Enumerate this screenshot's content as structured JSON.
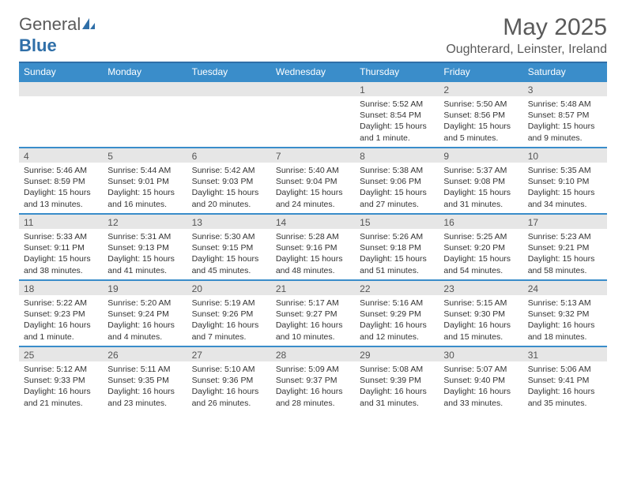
{
  "brand": {
    "part1": "General",
    "part2": "Blue"
  },
  "title": "May 2025",
  "location": "Oughterard, Leinster, Ireland",
  "colors": {
    "header_bg": "#3a8dca",
    "header_border": "#2f6fa8",
    "daynum_bg": "#e6e6e6",
    "text": "#333333",
    "title_text": "#5a5a5a"
  },
  "weekdays": [
    "Sunday",
    "Monday",
    "Tuesday",
    "Wednesday",
    "Thursday",
    "Friday",
    "Saturday"
  ],
  "weeks": [
    [
      {
        "n": "",
        "sr": "",
        "ss": "",
        "dl": ""
      },
      {
        "n": "",
        "sr": "",
        "ss": "",
        "dl": ""
      },
      {
        "n": "",
        "sr": "",
        "ss": "",
        "dl": ""
      },
      {
        "n": "",
        "sr": "",
        "ss": "",
        "dl": ""
      },
      {
        "n": "1",
        "sr": "Sunrise: 5:52 AM",
        "ss": "Sunset: 8:54 PM",
        "dl": "Daylight: 15 hours and 1 minute."
      },
      {
        "n": "2",
        "sr": "Sunrise: 5:50 AM",
        "ss": "Sunset: 8:56 PM",
        "dl": "Daylight: 15 hours and 5 minutes."
      },
      {
        "n": "3",
        "sr": "Sunrise: 5:48 AM",
        "ss": "Sunset: 8:57 PM",
        "dl": "Daylight: 15 hours and 9 minutes."
      }
    ],
    [
      {
        "n": "4",
        "sr": "Sunrise: 5:46 AM",
        "ss": "Sunset: 8:59 PM",
        "dl": "Daylight: 15 hours and 13 minutes."
      },
      {
        "n": "5",
        "sr": "Sunrise: 5:44 AM",
        "ss": "Sunset: 9:01 PM",
        "dl": "Daylight: 15 hours and 16 minutes."
      },
      {
        "n": "6",
        "sr": "Sunrise: 5:42 AM",
        "ss": "Sunset: 9:03 PM",
        "dl": "Daylight: 15 hours and 20 minutes."
      },
      {
        "n": "7",
        "sr": "Sunrise: 5:40 AM",
        "ss": "Sunset: 9:04 PM",
        "dl": "Daylight: 15 hours and 24 minutes."
      },
      {
        "n": "8",
        "sr": "Sunrise: 5:38 AM",
        "ss": "Sunset: 9:06 PM",
        "dl": "Daylight: 15 hours and 27 minutes."
      },
      {
        "n": "9",
        "sr": "Sunrise: 5:37 AM",
        "ss": "Sunset: 9:08 PM",
        "dl": "Daylight: 15 hours and 31 minutes."
      },
      {
        "n": "10",
        "sr": "Sunrise: 5:35 AM",
        "ss": "Sunset: 9:10 PM",
        "dl": "Daylight: 15 hours and 34 minutes."
      }
    ],
    [
      {
        "n": "11",
        "sr": "Sunrise: 5:33 AM",
        "ss": "Sunset: 9:11 PM",
        "dl": "Daylight: 15 hours and 38 minutes."
      },
      {
        "n": "12",
        "sr": "Sunrise: 5:31 AM",
        "ss": "Sunset: 9:13 PM",
        "dl": "Daylight: 15 hours and 41 minutes."
      },
      {
        "n": "13",
        "sr": "Sunrise: 5:30 AM",
        "ss": "Sunset: 9:15 PM",
        "dl": "Daylight: 15 hours and 45 minutes."
      },
      {
        "n": "14",
        "sr": "Sunrise: 5:28 AM",
        "ss": "Sunset: 9:16 PM",
        "dl": "Daylight: 15 hours and 48 minutes."
      },
      {
        "n": "15",
        "sr": "Sunrise: 5:26 AM",
        "ss": "Sunset: 9:18 PM",
        "dl": "Daylight: 15 hours and 51 minutes."
      },
      {
        "n": "16",
        "sr": "Sunrise: 5:25 AM",
        "ss": "Sunset: 9:20 PM",
        "dl": "Daylight: 15 hours and 54 minutes."
      },
      {
        "n": "17",
        "sr": "Sunrise: 5:23 AM",
        "ss": "Sunset: 9:21 PM",
        "dl": "Daylight: 15 hours and 58 minutes."
      }
    ],
    [
      {
        "n": "18",
        "sr": "Sunrise: 5:22 AM",
        "ss": "Sunset: 9:23 PM",
        "dl": "Daylight: 16 hours and 1 minute."
      },
      {
        "n": "19",
        "sr": "Sunrise: 5:20 AM",
        "ss": "Sunset: 9:24 PM",
        "dl": "Daylight: 16 hours and 4 minutes."
      },
      {
        "n": "20",
        "sr": "Sunrise: 5:19 AM",
        "ss": "Sunset: 9:26 PM",
        "dl": "Daylight: 16 hours and 7 minutes."
      },
      {
        "n": "21",
        "sr": "Sunrise: 5:17 AM",
        "ss": "Sunset: 9:27 PM",
        "dl": "Daylight: 16 hours and 10 minutes."
      },
      {
        "n": "22",
        "sr": "Sunrise: 5:16 AM",
        "ss": "Sunset: 9:29 PM",
        "dl": "Daylight: 16 hours and 12 minutes."
      },
      {
        "n": "23",
        "sr": "Sunrise: 5:15 AM",
        "ss": "Sunset: 9:30 PM",
        "dl": "Daylight: 16 hours and 15 minutes."
      },
      {
        "n": "24",
        "sr": "Sunrise: 5:13 AM",
        "ss": "Sunset: 9:32 PM",
        "dl": "Daylight: 16 hours and 18 minutes."
      }
    ],
    [
      {
        "n": "25",
        "sr": "Sunrise: 5:12 AM",
        "ss": "Sunset: 9:33 PM",
        "dl": "Daylight: 16 hours and 21 minutes."
      },
      {
        "n": "26",
        "sr": "Sunrise: 5:11 AM",
        "ss": "Sunset: 9:35 PM",
        "dl": "Daylight: 16 hours and 23 minutes."
      },
      {
        "n": "27",
        "sr": "Sunrise: 5:10 AM",
        "ss": "Sunset: 9:36 PM",
        "dl": "Daylight: 16 hours and 26 minutes."
      },
      {
        "n": "28",
        "sr": "Sunrise: 5:09 AM",
        "ss": "Sunset: 9:37 PM",
        "dl": "Daylight: 16 hours and 28 minutes."
      },
      {
        "n": "29",
        "sr": "Sunrise: 5:08 AM",
        "ss": "Sunset: 9:39 PM",
        "dl": "Daylight: 16 hours and 31 minutes."
      },
      {
        "n": "30",
        "sr": "Sunrise: 5:07 AM",
        "ss": "Sunset: 9:40 PM",
        "dl": "Daylight: 16 hours and 33 minutes."
      },
      {
        "n": "31",
        "sr": "Sunrise: 5:06 AM",
        "ss": "Sunset: 9:41 PM",
        "dl": "Daylight: 16 hours and 35 minutes."
      }
    ]
  ]
}
